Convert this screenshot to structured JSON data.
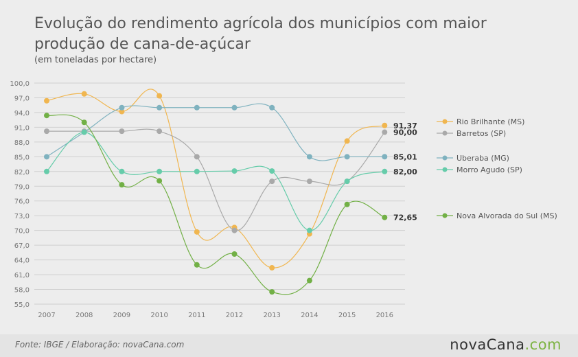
{
  "header": {
    "title": "Evolução do rendimento agrícola dos municípios com maior produção de cana-de-açúcar",
    "subtitle": "(em toneladas por hectare)"
  },
  "footer": {
    "source": "Fonte: IBGE / Elaboração: novaCana.com",
    "brand_main": "novaCana",
    "brand_suffix": ".com"
  },
  "colors": {
    "background": "#ededed",
    "grid": "#cfcfcf",
    "text": "#555555"
  },
  "chart_data": {
    "type": "line",
    "title": "Evolução do rendimento agrícola dos municípios com maior produção de cana-de-açúcar",
    "subtitle": "(em toneladas por hectare)",
    "x": [
      "2007",
      "2008",
      "2009",
      "2010",
      "2011",
      "2012",
      "2013",
      "2014",
      "2015",
      "2016"
    ],
    "ylim": [
      55.0,
      100.0
    ],
    "yticks": [
      "100,0",
      "97,0",
      "94,0",
      "91,0",
      "88,0",
      "85,0",
      "82,0",
      "79,0",
      "76,0",
      "73,0",
      "70,0",
      "67,0",
      "64,0",
      "61,0",
      "58,0",
      "55,0"
    ],
    "ytick_values": [
      100,
      97,
      94,
      91,
      88,
      85,
      82,
      79,
      76,
      73,
      70,
      67,
      64,
      61,
      58,
      55
    ],
    "grid": true,
    "legend_position": "right",
    "series": [
      {
        "name": "Rio Brilhante (MS)",
        "color": "#f0b650",
        "values": [
          96.4,
          97.8,
          94.2,
          97.4,
          69.7,
          70.6,
          62.4,
          69.3,
          88.2,
          91.37
        ],
        "end_label": "91,37"
      },
      {
        "name": "Barretos (SP)",
        "color": "#a9a9a9",
        "values": [
          90.2,
          90.2,
          90.2,
          90.2,
          85.0,
          70.0,
          80.0,
          80.0,
          80.0,
          90.0
        ],
        "end_label": "90,00"
      },
      {
        "name": "Uberaba (MG)",
        "color": "#7fb2bf",
        "values": [
          85.0,
          90.0,
          95.0,
          95.0,
          95.0,
          95.0,
          95.0,
          85.0,
          85.0,
          85.01
        ],
        "end_label": "85,01"
      },
      {
        "name": "Morro Agudo (SP)",
        "color": "#66ccaa",
        "values": [
          82.0,
          90.0,
          82.0,
          82.0,
          82.0,
          82.1,
          82.1,
          70.0,
          80.0,
          82.0
        ],
        "end_label": "82,00"
      },
      {
        "name": "Nova Alvorada do Sul (MS)",
        "color": "#72b046",
        "values": [
          93.4,
          92.0,
          79.3,
          80.1,
          63.0,
          65.2,
          57.5,
          59.8,
          75.3,
          72.65
        ],
        "end_label": "72,65"
      }
    ]
  }
}
